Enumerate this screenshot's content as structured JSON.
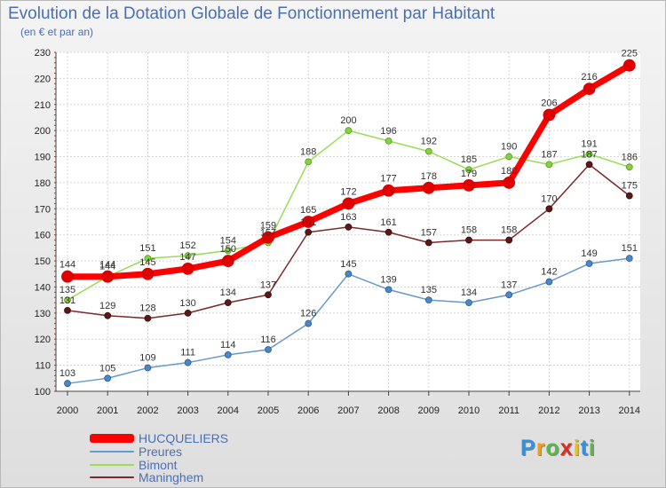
{
  "header": {
    "title": "Evolution de la Dotation Globale de Fonctionnement par Habitant",
    "subtitle": "(en € et par an)"
  },
  "chart_data": {
    "type": "line",
    "title": "Evolution de la Dotation Globale de Fonctionnement par Habitant",
    "subtitle": "(en € et par an)",
    "xlabel": "",
    "ylabel": "",
    "x": [
      "2000",
      "2001",
      "2002",
      "2003",
      "2004",
      "2005",
      "2006",
      "2007",
      "2008",
      "2009",
      "2010",
      "2011",
      "2012",
      "2013",
      "2014"
    ],
    "ylim": [
      100,
      230
    ],
    "yticks": [
      100,
      110,
      120,
      130,
      140,
      150,
      160,
      170,
      180,
      190,
      200,
      210,
      220,
      230
    ],
    "grid": true,
    "legend_position": "bottom-left",
    "series": [
      {
        "name": "HUCQUELIERS",
        "color": "#ff0000",
        "values": [
          144,
          144,
          145,
          147,
          150,
          159,
          165,
          172,
          177,
          178,
          179,
          180,
          206,
          216,
          225
        ]
      },
      {
        "name": "Preures",
        "color": "#6699cc",
        "values": [
          103,
          105,
          109,
          111,
          114,
          116,
          126,
          145,
          139,
          135,
          134,
          137,
          142,
          149,
          151
        ]
      },
      {
        "name": "Bimont",
        "color": "#99dd55",
        "values": [
          135,
          144,
          151,
          152,
          154,
          157,
          188,
          200,
          196,
          192,
          185,
          190,
          187,
          191,
          186
        ]
      },
      {
        "name": "Maninghem",
        "color": "#7a2a2a",
        "values": [
          131,
          129,
          128,
          130,
          134,
          137,
          161,
          163,
          161,
          157,
          158,
          158,
          170,
          187,
          175
        ]
      }
    ]
  },
  "logo": {
    "letters": [
      "P",
      "r",
      "o",
      "x",
      "i",
      "t",
      "i"
    ]
  }
}
